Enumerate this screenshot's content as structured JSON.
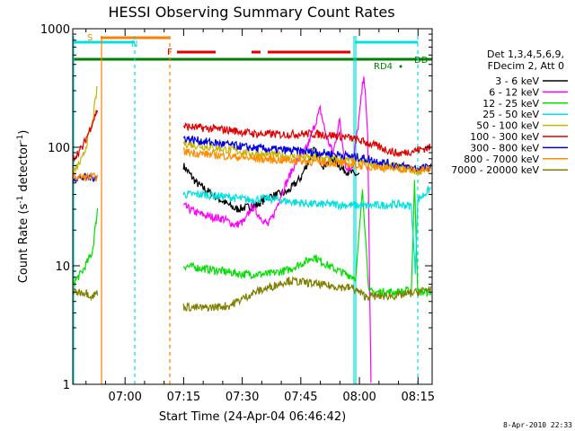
{
  "chart_data": {
    "type": "line",
    "title": "HESSI Observing Summary Count Rates",
    "xlabel": "Start Time (24-Apr-04 06:46:42)",
    "ylabel_main": "Count Rate (s",
    "ylabel_exp1": "-1",
    "ylabel_mid": " detector",
    "ylabel_exp2": "-1",
    "ylabel_end": ")",
    "y_scale": "log",
    "ylim": [
      1,
      1000
    ],
    "xlim": [
      0,
      5520
    ],
    "x_ticks": [
      {
        "t": 803,
        "label": "07:00"
      },
      {
        "t": 1703,
        "label": "07:15"
      },
      {
        "t": 2603,
        "label": "07:30"
      },
      {
        "t": 3503,
        "label": "07:45"
      },
      {
        "t": 4403,
        "label": "08:00"
      },
      {
        "t": 5303,
        "label": "08:15"
      }
    ],
    "y_ticks": [
      {
        "v": 1,
        "label": "1"
      },
      {
        "v": 10,
        "label": "10"
      },
      {
        "v": 100,
        "label": "100"
      },
      {
        "v": 1000,
        "label": "1000"
      }
    ],
    "legend": {
      "placement": "right",
      "header1": "Det 1,3,4,5,6,9,",
      "header2": "FDecim 2, Att 0",
      "entries": [
        {
          "label": "3 - 6 keV",
          "color": "#000000"
        },
        {
          "label": "6 - 12 keV",
          "color": "#ff00ff"
        },
        {
          "label": "12 - 25 keV",
          "color": "#00e000"
        },
        {
          "label": "25 - 50 keV",
          "color": "#00e0e0"
        },
        {
          "label": "50 - 100 keV",
          "color": "#c8b400"
        },
        {
          "label": "100 - 300 keV",
          "color": "#e00000"
        },
        {
          "label": "300 - 800 keV",
          "color": "#0000e0"
        },
        {
          "label": "800 - 7000 keV",
          "color": "#ff8c00"
        },
        {
          "label": "7000 - 20000 keV",
          "color": "#7f7f00"
        }
      ]
    },
    "flags": [
      {
        "label": "S",
        "color": "#ff7f00"
      },
      {
        "label": "N",
        "color": "#00e0e0"
      },
      {
        "label": "F",
        "color": "#e00000"
      },
      {
        "label": "RD4",
        "color": "#007f00"
      },
      {
        "label": "DD",
        "color": "#007f00"
      }
    ],
    "series": [
      {
        "name": "3 - 6 keV",
        "color": "#000000",
        "points": [
          [
            1700,
            70
          ],
          [
            1900,
            50
          ],
          [
            2200,
            38
          ],
          [
            2500,
            30
          ],
          [
            2800,
            32
          ],
          [
            3000,
            38
          ],
          [
            3300,
            42
          ],
          [
            3500,
            55
          ],
          [
            3700,
            95
          ],
          [
            3850,
            70
          ],
          [
            4000,
            80
          ],
          [
            4150,
            65
          ],
          [
            4300,
            60
          ],
          [
            4400,
            58
          ]
        ]
      },
      {
        "name": "6 - 12 keV",
        "color": "#ff00ff",
        "points": [
          [
            1700,
            32
          ],
          [
            1900,
            28
          ],
          [
            2100,
            26
          ],
          [
            2300,
            25
          ],
          [
            2500,
            22
          ],
          [
            2650,
            24
          ],
          [
            2750,
            32
          ],
          [
            2850,
            27
          ],
          [
            3000,
            22
          ],
          [
            3100,
            28
          ],
          [
            3200,
            40
          ],
          [
            3400,
            70
          ],
          [
            3600,
            100
          ],
          [
            3800,
            210
          ],
          [
            3900,
            120
          ],
          [
            4000,
            90
          ],
          [
            4100,
            170
          ],
          [
            4200,
            65
          ],
          [
            4300,
            70
          ],
          [
            4400,
            180
          ],
          [
            4470,
            420
          ],
          [
            4530,
            130
          ],
          [
            4580,
            1
          ]
        ]
      },
      {
        "name": "12 - 25 keV",
        "color": "#00e000",
        "points": [
          [
            0,
            7
          ],
          [
            150,
            9
          ],
          [
            300,
            13
          ],
          [
            380,
            30
          ],
          [
            1700,
            10
          ],
          [
            2000,
            9.5
          ],
          [
            2300,
            9
          ],
          [
            2600,
            8.5
          ],
          [
            3000,
            8.5
          ],
          [
            3300,
            9.2
          ],
          [
            3600,
            11
          ],
          [
            3700,
            12
          ],
          [
            3800,
            11
          ],
          [
            4000,
            9.5
          ],
          [
            4200,
            8.5
          ],
          [
            4350,
            8
          ],
          [
            4450,
            45
          ],
          [
            4550,
            6
          ],
          [
            5000,
            6
          ],
          [
            5200,
            6.2
          ],
          [
            5250,
            50
          ],
          [
            5300,
            6
          ],
          [
            5500,
            6
          ]
        ]
      },
      {
        "name": "25 - 50 keV",
        "color": "#00e0e0",
        "points": [
          [
            1700,
            40
          ],
          [
            2000,
            40
          ],
          [
            2400,
            38
          ],
          [
            2700,
            36
          ],
          [
            3000,
            37
          ],
          [
            3300,
            35
          ],
          [
            3700,
            33
          ],
          [
            4000,
            33
          ],
          [
            4500,
            32
          ],
          [
            5000,
            33
          ],
          [
            5200,
            32
          ],
          [
            5260,
            9
          ],
          [
            5300,
            36
          ],
          [
            5500,
            45
          ]
        ]
      },
      {
        "name": "50 - 100 keV",
        "color": "#c8b400",
        "points": [
          [
            0,
            60
          ],
          [
            150,
            80
          ],
          [
            300,
            160
          ],
          [
            380,
            330
          ],
          [
            1700,
            108
          ],
          [
            2000,
            102
          ],
          [
            2400,
            95
          ],
          [
            2800,
            88
          ],
          [
            3200,
            85
          ],
          [
            3600,
            82
          ],
          [
            4000,
            80
          ],
          [
            4400,
            75
          ],
          [
            5000,
            68
          ],
          [
            5300,
            62
          ],
          [
            5500,
            66
          ]
        ]
      },
      {
        "name": "100 - 300 keV",
        "color": "#e00000",
        "points": [
          [
            0,
            80
          ],
          [
            150,
            100
          ],
          [
            300,
            160
          ],
          [
            380,
            210
          ],
          [
            1700,
            150
          ],
          [
            2000,
            145
          ],
          [
            2400,
            140
          ],
          [
            2800,
            130
          ],
          [
            3200,
            128
          ],
          [
            3600,
            130
          ],
          [
            3900,
            128
          ],
          [
            4200,
            122
          ],
          [
            4500,
            110
          ],
          [
            5000,
            88
          ],
          [
            5300,
            95
          ],
          [
            5500,
            100
          ]
        ]
      },
      {
        "name": "300 - 800 keV",
        "color": "#0000e0",
        "points": [
          [
            0,
            55
          ],
          [
            300,
            56
          ],
          [
            380,
            55
          ],
          [
            1700,
            120
          ],
          [
            2000,
            112
          ],
          [
            2400,
            105
          ],
          [
            2800,
            98
          ],
          [
            3200,
            95
          ],
          [
            3600,
            92
          ],
          [
            4000,
            88
          ],
          [
            4400,
            82
          ],
          [
            5000,
            70
          ],
          [
            5300,
            66
          ],
          [
            5500,
            68
          ]
        ]
      },
      {
        "name": "800 - 7000 keV",
        "color": "#ff8c00",
        "points": [
          [
            0,
            56
          ],
          [
            380,
            56
          ],
          [
            1700,
            92
          ],
          [
            2000,
            88
          ],
          [
            2400,
            84
          ],
          [
            2800,
            80
          ],
          [
            3200,
            78
          ],
          [
            3600,
            76
          ],
          [
            4000,
            74
          ],
          [
            4400,
            70
          ],
          [
            5000,
            66
          ],
          [
            5300,
            64
          ],
          [
            5500,
            65
          ]
        ]
      },
      {
        "name": "7000 - 20000 keV",
        "color": "#7f7f00",
        "points": [
          [
            0,
            6
          ],
          [
            200,
            6
          ],
          [
            300,
            5.5
          ],
          [
            380,
            6
          ],
          [
            1700,
            4.5
          ],
          [
            2000,
            4.4
          ],
          [
            2400,
            4.6
          ],
          [
            2800,
            6
          ],
          [
            3000,
            6.5
          ],
          [
            3300,
            7.5
          ],
          [
            3600,
            7.2
          ],
          [
            3900,
            6.8
          ],
          [
            4300,
            6.5
          ],
          [
            4500,
            5.5
          ],
          [
            5000,
            5.6
          ],
          [
            5300,
            6
          ],
          [
            5500,
            6.5
          ]
        ]
      }
    ]
  },
  "footer": {
    "date": "8-Apr-2010 22:33"
  }
}
